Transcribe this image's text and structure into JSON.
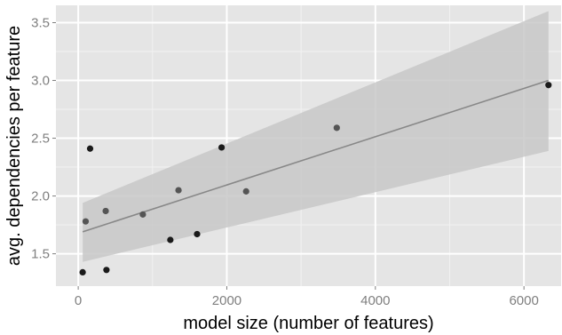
{
  "chart_data": {
    "type": "scatter",
    "title": "",
    "xlabel": "model size (number of features)",
    "ylabel": "avg. dependencies per feature",
    "xlim": [
      -300,
      6500
    ],
    "ylim": [
      1.22,
      3.65
    ],
    "x_ticks": [
      0,
      2000,
      4000,
      6000
    ],
    "x_tick_labels": [
      "0",
      "2000",
      "4000",
      "6000"
    ],
    "y_ticks": [
      1.5,
      2.0,
      2.5,
      3.0,
      3.5
    ],
    "y_tick_labels": [
      "1.5",
      "2.0",
      "2.5",
      "3.0",
      "3.5"
    ],
    "grid": true,
    "background": "#e5e5e5",
    "points": [
      {
        "x": 60,
        "y": 1.34,
        "color": "#1a1a1a"
      },
      {
        "x": 100,
        "y": 1.78,
        "color": "#555555"
      },
      {
        "x": 160,
        "y": 2.41,
        "color": "#1a1a1a"
      },
      {
        "x": 370,
        "y": 1.87,
        "color": "#555555"
      },
      {
        "x": 380,
        "y": 1.36,
        "color": "#1a1a1a"
      },
      {
        "x": 870,
        "y": 1.84,
        "color": "#555555"
      },
      {
        "x": 1240,
        "y": 1.62,
        "color": "#1a1a1a"
      },
      {
        "x": 1350,
        "y": 2.05,
        "color": "#555555"
      },
      {
        "x": 1600,
        "y": 1.67,
        "color": "#1a1a1a"
      },
      {
        "x": 1930,
        "y": 2.42,
        "color": "#1a1a1a"
      },
      {
        "x": 2260,
        "y": 2.04,
        "color": "#555555"
      },
      {
        "x": 3480,
        "y": 2.59,
        "color": "#555555"
      },
      {
        "x": 6330,
        "y": 2.96,
        "color": "#1a1a1a"
      }
    ],
    "trend": {
      "x": [
        60,
        6330
      ],
      "y": [
        1.69,
        3.0
      ],
      "color": "#888888"
    },
    "confidence_band": {
      "x": [
        60,
        6330
      ],
      "upper": [
        1.94,
        3.6
      ],
      "lower": [
        1.43,
        2.39
      ],
      "color": "#c8c8c8"
    }
  }
}
